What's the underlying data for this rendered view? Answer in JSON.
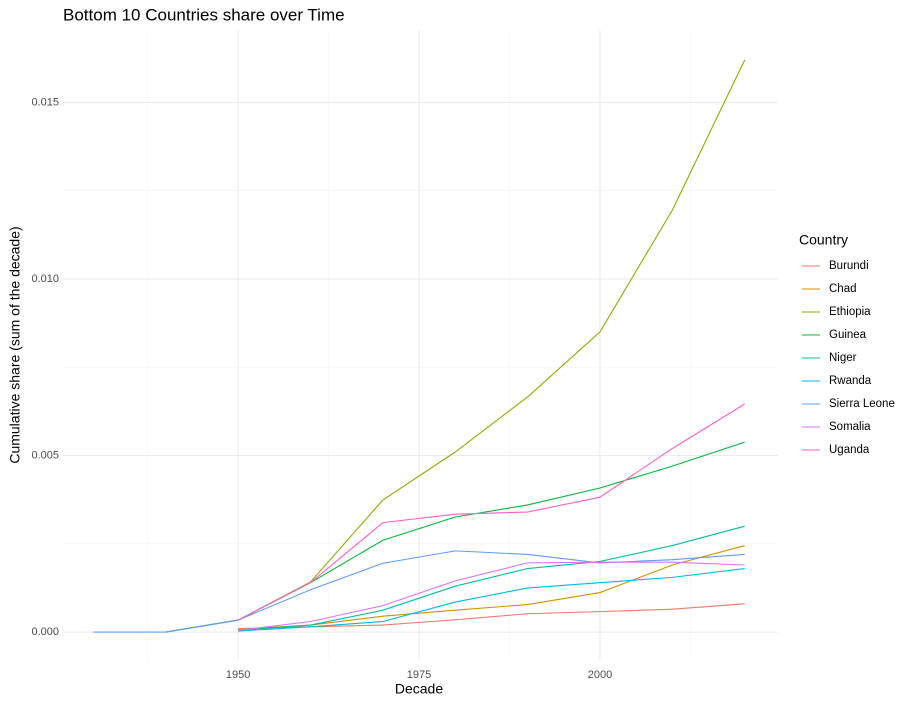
{
  "chart_data": {
    "type": "line",
    "title": "Bottom 10 Countries share over Time",
    "x_label": "Decade",
    "y_label": "Cumulative share (sum of the decade)",
    "legend_title": "Country",
    "legend_position": "right",
    "grid": true,
    "x": [
      1930,
      1940,
      1950,
      1960,
      1970,
      1980,
      1990,
      2000,
      2010,
      2020
    ],
    "xlim": [
      1925.8,
      2024.6
    ],
    "xticks": [
      1950,
      1975,
      2000
    ],
    "x_minor_ticks": [
      1937.5,
      1962.5,
      1987.5,
      2012.5
    ],
    "ylim": [
      -0.00079,
      0.01705
    ],
    "yticks": [
      {
        "value": 0,
        "label": "0.000"
      },
      {
        "value": 0.005,
        "label": "0.005"
      },
      {
        "value": 0.01,
        "label": "0.010"
      },
      {
        "value": 0.015,
        "label": "0.015"
      }
    ],
    "y_minor_ticks": [
      0.0025,
      0.0075,
      0.0125
    ],
    "series": [
      {
        "name": "Burundi",
        "color": "#F8766D",
        "values": [
          null,
          null,
          0.0001,
          0.00015,
          0.0002,
          0.00035,
          0.00052,
          0.00058,
          0.00065,
          0.0008
        ]
      },
      {
        "name": "Chad",
        "color": "#D39200",
        "values": [
          null,
          null,
          8e-05,
          0.0002,
          0.00045,
          0.00062,
          0.00078,
          0.00112,
          0.0019,
          0.00245
        ]
      },
      {
        "name": "Ethiopia",
        "color": "#93AA00",
        "values": [
          null,
          0,
          0.00034,
          0.00142,
          0.00374,
          0.0051,
          0.00666,
          0.0085,
          0.01195,
          0.0162
        ]
      },
      {
        "name": "Guinea",
        "color": "#00BA38",
        "values": [
          null,
          0,
          0.00034,
          0.0014,
          0.0026,
          0.00326,
          0.0036,
          0.00408,
          0.0047,
          0.00538
        ]
      },
      {
        "name": "Niger",
        "color": "#00C19F",
        "values": [
          null,
          null,
          5e-05,
          0.0002,
          0.00062,
          0.0013,
          0.0018,
          0.002,
          0.00245,
          0.003
        ]
      },
      {
        "name": "Rwanda",
        "color": "#00B9E3",
        "values": [
          null,
          null,
          3e-05,
          0.00015,
          0.0003,
          0.00085,
          0.00125,
          0.0014,
          0.00155,
          0.0018
        ]
      },
      {
        "name": "Sierra Leone",
        "color": "#619CFF",
        "values": [
          0,
          0,
          0.00034,
          0.0012,
          0.00195,
          0.0023,
          0.0022,
          0.00196,
          0.00205,
          0.0022
        ]
      },
      {
        "name": "Somalia",
        "color": "#DB72FB",
        "values": [
          null,
          null,
          5e-05,
          0.0003,
          0.00075,
          0.00145,
          0.00196,
          0.00198,
          0.00198,
          0.0019
        ]
      },
      {
        "name": "Uganda",
        "color": "#FF61C3",
        "values": [
          null,
          null,
          0.00034,
          0.0014,
          0.0031,
          0.00334,
          0.0034,
          0.00382,
          0.0052,
          0.00646
        ]
      }
    ]
  }
}
